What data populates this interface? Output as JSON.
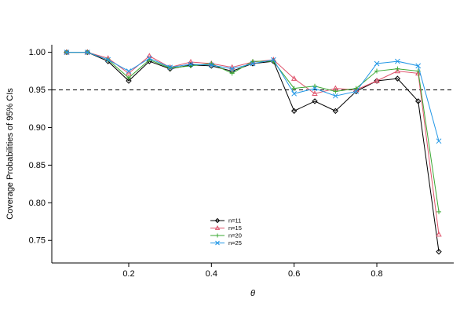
{
  "chart_data": {
    "type": "line",
    "title": "",
    "xlabel": "θ",
    "ylabel": "Coverage Probabilities of 95% CIs",
    "xlim": [
      0.014,
      0.986
    ],
    "ylim": [
      0.72,
      1.01
    ],
    "xticks": [
      0.2,
      0.4,
      0.6,
      0.8
    ],
    "yticks": [
      0.75,
      0.8,
      0.85,
      0.9,
      0.95,
      1.0
    ],
    "grid": false,
    "legend_position": "inside-bottom-center",
    "reference_line": {
      "y": 0.95,
      "style": "dashed",
      "color": "#000000"
    },
    "x": [
      0.05,
      0.1,
      0.15,
      0.2,
      0.25,
      0.3,
      0.35,
      0.4,
      0.45,
      0.5,
      0.55,
      0.6,
      0.65,
      0.7,
      0.75,
      0.8,
      0.85,
      0.9,
      0.95
    ],
    "series": [
      {
        "name": "n=11",
        "color": "#000000",
        "marker": "diamond",
        "values": [
          1.0,
          1.0,
          0.988,
          0.962,
          0.988,
          0.978,
          0.983,
          0.982,
          0.975,
          0.985,
          0.988,
          0.922,
          0.935,
          0.922,
          0.948,
          0.962,
          0.965,
          0.935,
          0.735
        ]
      },
      {
        "name": "n=15",
        "color": "#df536b",
        "marker": "triangle",
        "values": [
          1.0,
          1.0,
          0.992,
          0.972,
          0.995,
          0.98,
          0.987,
          0.985,
          0.98,
          0.987,
          0.99,
          0.965,
          0.945,
          0.952,
          0.95,
          0.962,
          0.975,
          0.972,
          0.758
        ]
      },
      {
        "name": "n=20",
        "color": "#3aa832",
        "marker": "plus",
        "values": [
          1.0,
          1.0,
          0.99,
          0.966,
          0.99,
          0.979,
          0.982,
          0.985,
          0.972,
          0.988,
          0.988,
          0.952,
          0.955,
          0.948,
          0.952,
          0.975,
          0.978,
          0.975,
          0.788
        ]
      },
      {
        "name": "n=25",
        "color": "#2297e6",
        "marker": "x",
        "values": [
          1.0,
          1.0,
          0.99,
          0.975,
          0.992,
          0.98,
          0.984,
          0.983,
          0.978,
          0.985,
          0.99,
          0.945,
          0.952,
          0.942,
          0.948,
          0.985,
          0.988,
          0.982,
          0.882
        ]
      }
    ]
  }
}
